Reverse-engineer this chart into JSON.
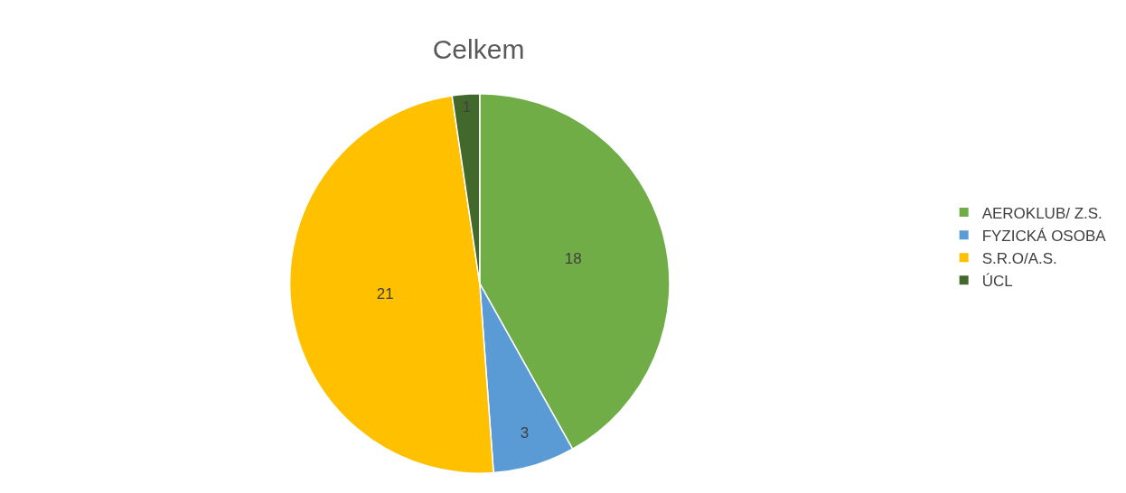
{
  "chart_data": {
    "type": "pie",
    "title": "Celkem",
    "categories": [
      "AEROKLUB/ Z.S.",
      "FYZICKÁ OSOBA",
      "S.R.O/A.S.",
      "ÚCL"
    ],
    "values": [
      18,
      3,
      21,
      1
    ],
    "colors": [
      "#70ad47",
      "#5b9bd5",
      "#ffc000",
      "#43682b"
    ],
    "data_labels": true,
    "legend": "right"
  }
}
